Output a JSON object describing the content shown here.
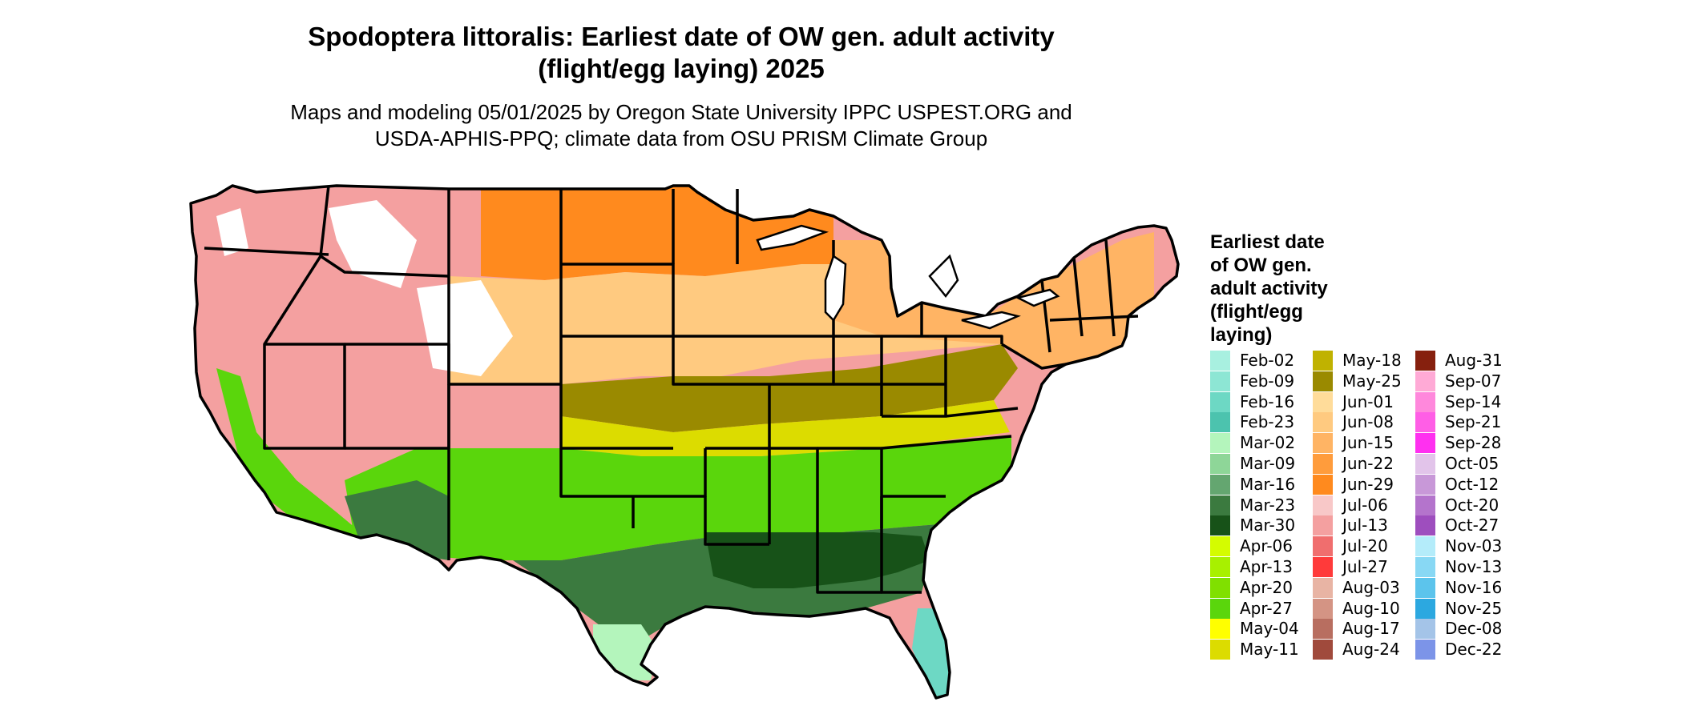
{
  "title_lines": [
    "Spodoptera littoralis: Earliest date of OW gen. adult activity",
    "(flight/egg laying) 2025"
  ],
  "subtitle_lines": [
    "Maps and modeling 05/01/2025 by Oregon State University IPPC USPEST.ORG and",
    "USDA-APHIS-PPQ; climate data from OSU PRISM Climate Group"
  ],
  "legend": {
    "title_lines": [
      "Earliest date",
      "of OW gen.",
      "adult activity",
      "(flight/egg",
      "laying)"
    ],
    "columns": [
      [
        {
          "label": "Feb-02",
          "color": "#a8f0e0"
        },
        {
          "label": "Feb-09",
          "color": "#8de6d4"
        },
        {
          "label": "Feb-16",
          "color": "#6dd8c4"
        },
        {
          "label": "Feb-23",
          "color": "#4cc3ae"
        },
        {
          "label": "Mar-02",
          "color": "#b4f5bc"
        },
        {
          "label": "Mar-09",
          "color": "#8ed698"
        },
        {
          "label": "Mar-16",
          "color": "#64a670"
        },
        {
          "label": "Mar-23",
          "color": "#3b7a3f"
        },
        {
          "label": "Mar-30",
          "color": "#175218"
        },
        {
          "label": "Apr-06",
          "color": "#d4fc00"
        },
        {
          "label": "Apr-13",
          "color": "#a8f000"
        },
        {
          "label": "Apr-20",
          "color": "#80e000"
        },
        {
          "label": "Apr-27",
          "color": "#5ad60c"
        },
        {
          "label": "May-04",
          "color": "#ffff00"
        },
        {
          "label": "May-11",
          "color": "#dcdc00"
        }
      ],
      [
        {
          "label": "May-18",
          "color": "#c0b200"
        },
        {
          "label": "May-25",
          "color": "#9a8a00"
        },
        {
          "label": "Jun-01",
          "color": "#ffdc9a"
        },
        {
          "label": "Jun-08",
          "color": "#ffca80"
        },
        {
          "label": "Jun-15",
          "color": "#ffb464"
        },
        {
          "label": "Jun-22",
          "color": "#ff9c3c"
        },
        {
          "label": "Jun-29",
          "color": "#ff8a1e"
        },
        {
          "label": "Jul-06",
          "color": "#f8c8c8"
        },
        {
          "label": "Jul-13",
          "color": "#f4a0a0"
        },
        {
          "label": "Jul-20",
          "color": "#f06e6e"
        },
        {
          "label": "Jul-27",
          "color": "#ff3a3a"
        },
        {
          "label": "Aug-03",
          "color": "#e8b4a4"
        },
        {
          "label": "Aug-10",
          "color": "#d49484"
        },
        {
          "label": "Aug-17",
          "color": "#b86e60"
        },
        {
          "label": "Aug-24",
          "color": "#a04a3c"
        }
      ],
      [
        {
          "label": "Aug-31",
          "color": "#86200e"
        },
        {
          "label": "Sep-07",
          "color": "#ffaad6"
        },
        {
          "label": "Sep-14",
          "color": "#ff88dc"
        },
        {
          "label": "Sep-21",
          "color": "#ff5ee6"
        },
        {
          "label": "Sep-28",
          "color": "#ff30f0"
        },
        {
          "label": "Oct-05",
          "color": "#e2c4ea"
        },
        {
          "label": "Oct-12",
          "color": "#c898d8"
        },
        {
          "label": "Oct-20",
          "color": "#b474cc"
        },
        {
          "label": "Oct-27",
          "color": "#9e4ebe"
        },
        {
          "label": "Nov-03",
          "color": "#b4ecfa"
        },
        {
          "label": "Nov-13",
          "color": "#88d8f4"
        },
        {
          "label": "Nov-16",
          "color": "#5cc4ec"
        },
        {
          "label": "Nov-25",
          "color": "#2ca8e0"
        },
        {
          "label": "Dec-08",
          "color": "#a4c4e8"
        },
        {
          "label": "Dec-22",
          "color": "#7c94e8"
        }
      ]
    ]
  },
  "map": {
    "region": "Contiguous United States",
    "colors": {
      "northwest_mountain": "#f4a0a0",
      "north_plains": "#ff8a1e",
      "central_plains": "#ffca80",
      "upper_midwest": "#ffb464",
      "midlands": "#9a8a00",
      "kentucky_belt": "#dcdc00",
      "south_band": "#5ad60c",
      "gulf_coast": "#175218",
      "gulf_mid": "#3b7a3f",
      "texas_tip": "#b4f5bc",
      "florida": "#6dd8c4",
      "boundary": "#000000",
      "snow": "#ffffff"
    }
  }
}
